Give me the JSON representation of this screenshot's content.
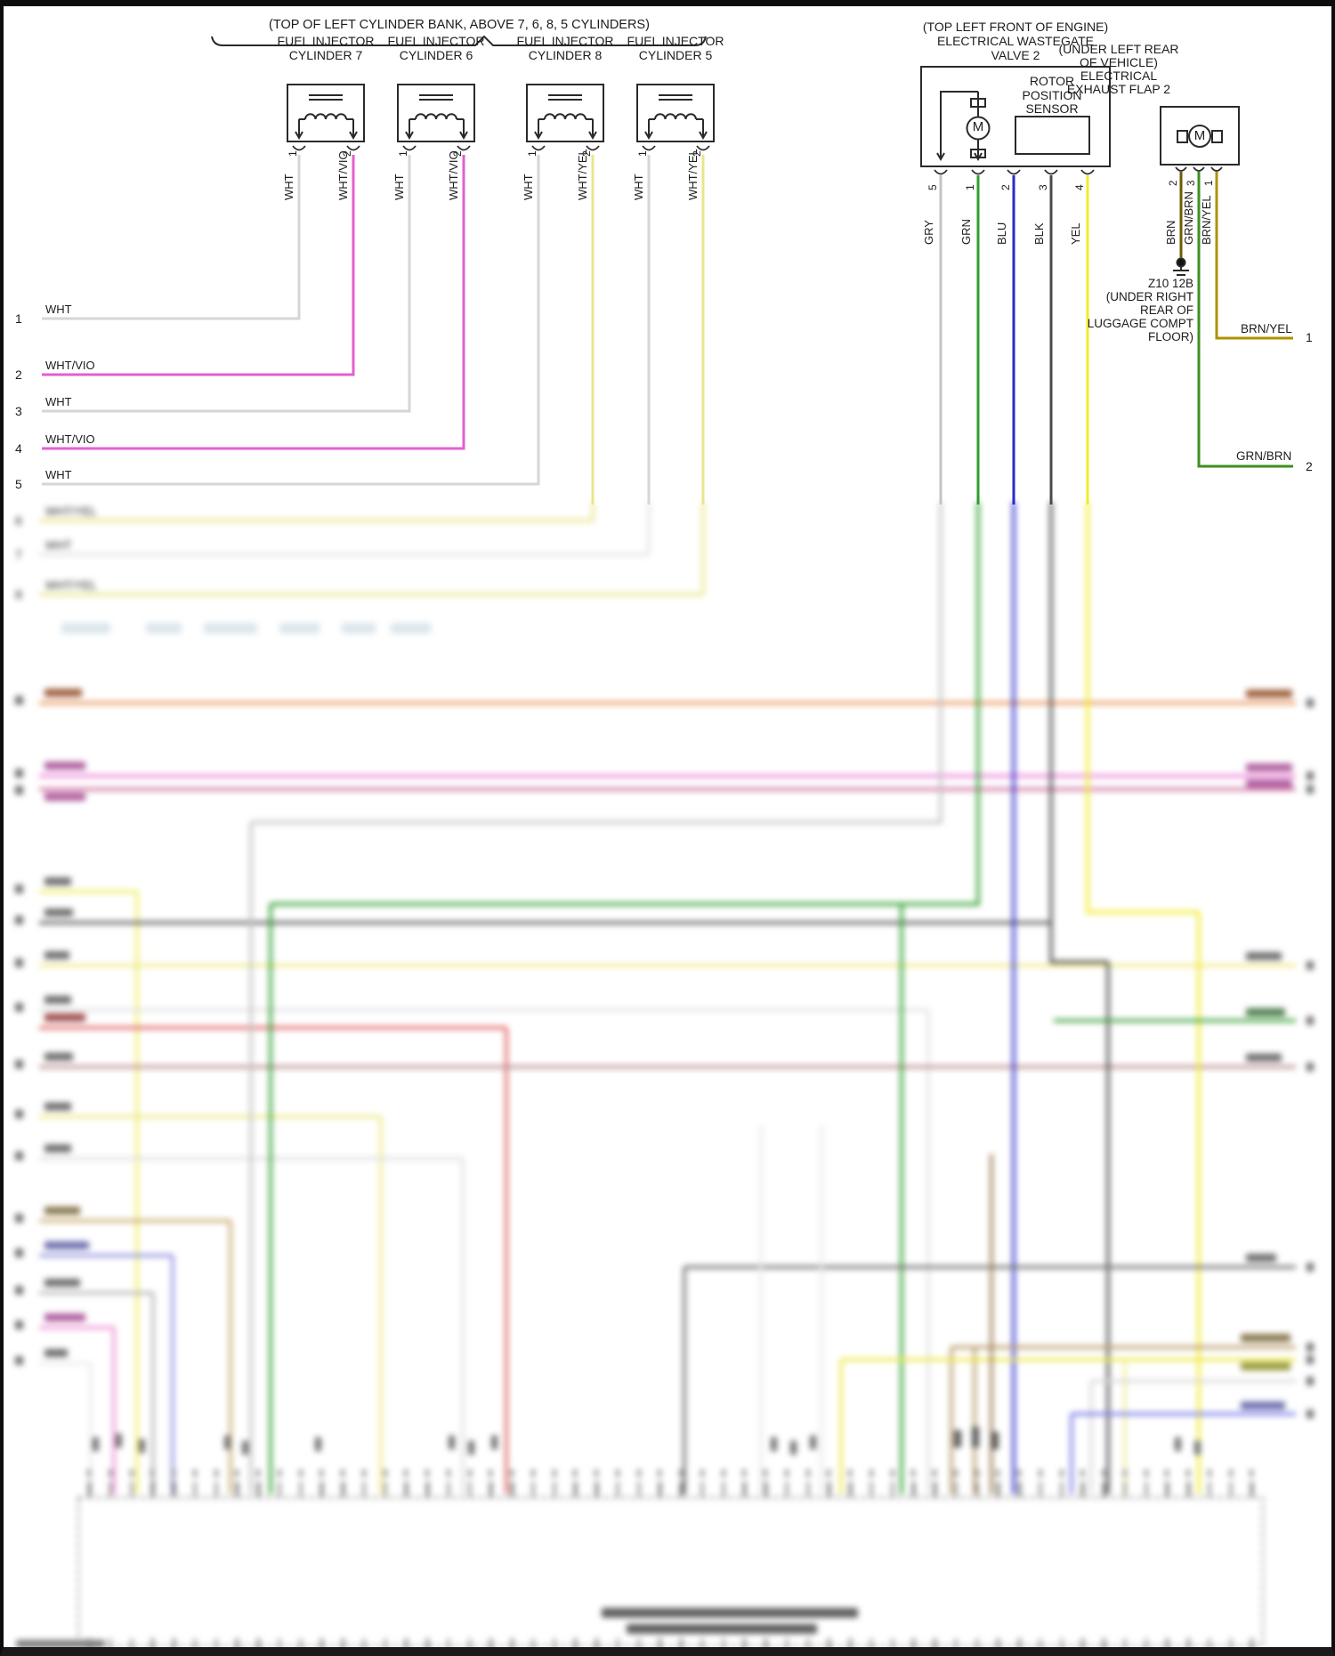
{
  "brace_label": "(TOP OF LEFT CYLINDER BANK, ABOVE 7, 6, 8, 5 CYLINDERS)",
  "injectors": [
    {
      "title1": "FUEL INJECTOR",
      "title2": "CYLINDER 7",
      "pins": [
        {
          "num": "1",
          "wire": "WHT"
        },
        {
          "num": "2",
          "wire": "WHT/VIO"
        }
      ]
    },
    {
      "title1": "FUEL INJECTOR",
      "title2": "CYLINDER 6",
      "pins": [
        {
          "num": "1",
          "wire": "WHT"
        },
        {
          "num": "2",
          "wire": "WHT/VIO"
        }
      ]
    },
    {
      "title1": "FUEL INJECTOR",
      "title2": "CYLINDER 8",
      "pins": [
        {
          "num": "1",
          "wire": "WHT"
        },
        {
          "num": "2",
          "wire": "WHT/YEL"
        }
      ]
    },
    {
      "title1": "FUEL INJECTOR",
      "title2": "CYLINDER 5",
      "pins": [
        {
          "num": "1",
          "wire": "WHT"
        },
        {
          "num": "2",
          "wire": "WHT/YEL"
        }
      ]
    }
  ],
  "left_rows": [
    {
      "num": "1",
      "label": "WHT"
    },
    {
      "num": "2",
      "label": "WHT/VIO"
    },
    {
      "num": "3",
      "label": "WHT"
    },
    {
      "num": "4",
      "label": "WHT/VIO"
    },
    {
      "num": "5",
      "label": "WHT"
    },
    {
      "num": "6",
      "label": "WHT/YEL"
    },
    {
      "num": "7",
      "label": "WHT"
    },
    {
      "num": "8",
      "label": "WHT/YEL"
    }
  ],
  "wastegate": {
    "location": "(TOP LEFT FRONT OF ENGINE)",
    "name1": "ELECTRICAL WASTEGATE",
    "name2": "VALVE 2",
    "motor": "M",
    "sensor1": "ROTOR",
    "sensor2": "POSITION",
    "sensor3": "SENSOR",
    "pins": [
      {
        "num": "5",
        "wire": "GRY"
      },
      {
        "num": "1",
        "wire": "GRN"
      },
      {
        "num": "2",
        "wire": "BLU"
      },
      {
        "num": "3",
        "wire": "BLK"
      },
      {
        "num": "4",
        "wire": "YEL"
      }
    ]
  },
  "exhaust_flap": {
    "loc1": "(UNDER LEFT REAR",
    "loc2": "OF VEHICLE)",
    "loc3": "ELECTRICAL",
    "loc4": "EXHAUST FLAP 2",
    "motor": "M",
    "pins": [
      {
        "num": "2",
        "wire": "BRN"
      },
      {
        "num": "3",
        "wire": "GRN/BRN"
      },
      {
        "num": "1",
        "wire": "BRN/YEL"
      }
    ]
  },
  "ground": {
    "code": "Z10 12B",
    "loc1": "(UNDER RIGHT",
    "loc2": "REAR OF",
    "loc3": "LUGGAGE COMPT",
    "loc4": "FLOOR)"
  },
  "right_exits": [
    {
      "label": "BRN/YEL",
      "num": "1"
    },
    {
      "label": "GRN/BRN",
      "num": "2"
    }
  ],
  "colors": {
    "wht": "#d6d6d6",
    "wht_vio": "#e35fd1",
    "wht_yel": "#eae58e",
    "gry": "#c4c4c4",
    "grn": "#2e9e2e",
    "blu": "#2a2ace",
    "blk": "#4a4a4a",
    "yel": "#f0ec2a",
    "brn": "#6e5a00",
    "grn_brn": "#3f8f1f",
    "brn_yel": "#ab9300",
    "orange_wire": "#e8945a",
    "pink_wire": "#ee82d8",
    "red_wire": "#e06060",
    "tan_wire": "#c9aa6e",
    "violet_wire": "#9090e0"
  }
}
